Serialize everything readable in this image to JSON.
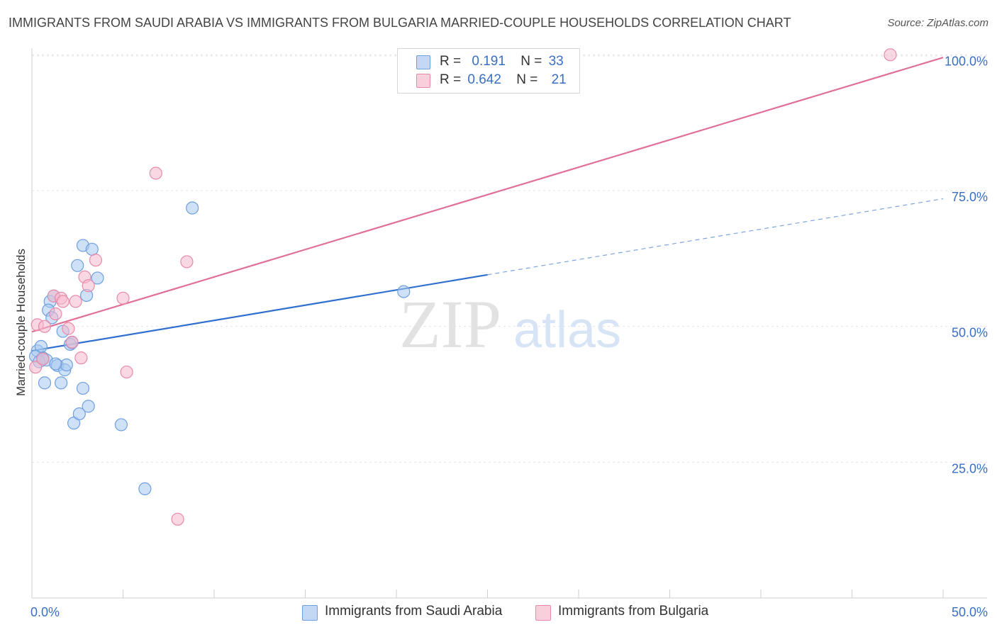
{
  "title": "IMMIGRANTS FROM SAUDI ARABIA VS IMMIGRANTS FROM BULGARIA MARRIED-COUPLE HOUSEHOLDS CORRELATION CHART",
  "source": "Source: ZipAtlas.com",
  "watermark": {
    "zip": "ZIP",
    "atlas": "atlas"
  },
  "legend": {
    "rows": [
      {
        "r_label": "R =",
        "r_value": "0.191",
        "n_label": "N =",
        "n_value": "33",
        "color": "#a8c8f0"
      },
      {
        "r_label": "R =",
        "r_value": "0.642",
        "n_label": "N =",
        "n_value": "21",
        "color": "#f5b8cc"
      }
    ]
  },
  "chart_data": {
    "type": "scatter",
    "title": "IMMIGRANTS FROM SAUDI ARABIA VS IMMIGRANTS FROM BULGARIA MARRIED-COUPLE HOUSEHOLDS CORRELATION CHART",
    "xlabel": "",
    "ylabel": "Married-couple Households",
    "xlim": [
      0,
      50
    ],
    "ylim": [
      0,
      102
    ],
    "x_tick_labels": [
      "0.0%",
      "50.0%"
    ],
    "y_tick_labels": [
      {
        "value": 25,
        "label": "25.0%"
      },
      {
        "value": 50,
        "label": "50.0%"
      },
      {
        "value": 75,
        "label": "75.0%"
      },
      {
        "value": 100,
        "label": "100.0%"
      }
    ],
    "series": [
      {
        "name": "Immigrants from Saudi Arabia",
        "color": "#6f9fe0",
        "fill": "#a8c8f0",
        "points": [
          [
            0.3,
            45.5
          ],
          [
            0.5,
            46.3
          ],
          [
            0.6,
            44.2
          ],
          [
            0.7,
            39.6
          ],
          [
            0.8,
            43.8
          ],
          [
            1.0,
            54.6
          ],
          [
            0.9,
            53.0
          ],
          [
            1.1,
            51.6
          ],
          [
            1.2,
            55.6
          ],
          [
            1.4,
            42.8
          ],
          [
            1.7,
            49.1
          ],
          [
            1.8,
            42.0
          ],
          [
            1.6,
            39.6
          ],
          [
            1.9,
            42.9
          ],
          [
            2.1,
            46.7
          ],
          [
            2.2,
            47.0
          ],
          [
            2.3,
            32.2
          ],
          [
            2.5,
            61.2
          ],
          [
            2.6,
            33.9
          ],
          [
            2.8,
            64.9
          ],
          [
            2.8,
            38.6
          ],
          [
            3.0,
            55.7
          ],
          [
            3.1,
            35.3
          ],
          [
            3.3,
            64.2
          ],
          [
            3.6,
            58.9
          ],
          [
            4.9,
            31.9
          ],
          [
            6.2,
            20.1
          ],
          [
            8.8,
            71.8
          ],
          [
            20.4,
            56.4
          ],
          [
            0.2,
            44.5
          ],
          [
            0.4,
            43.5
          ],
          [
            0.6,
            44.0
          ],
          [
            1.3,
            43.1
          ]
        ],
        "trend": {
          "x0": 0,
          "y0": 45.5,
          "x1": 25,
          "y1": 59.5,
          "dashed_to_x": 50,
          "dashed_to_y": 73.5
        }
      },
      {
        "name": "Immigrants from Bulgaria",
        "color": "#e88aa8",
        "fill": "#f5b8cc",
        "points": [
          [
            0.2,
            42.5
          ],
          [
            0.3,
            50.3
          ],
          [
            0.7,
            50.0
          ],
          [
            0.6,
            44.0
          ],
          [
            1.2,
            55.6
          ],
          [
            1.3,
            52.3
          ],
          [
            1.6,
            55.2
          ],
          [
            1.7,
            54.6
          ],
          [
            2.0,
            49.6
          ],
          [
            2.2,
            47.1
          ],
          [
            2.4,
            54.6
          ],
          [
            2.7,
            44.2
          ],
          [
            2.9,
            59.1
          ],
          [
            3.1,
            57.5
          ],
          [
            3.5,
            62.2
          ],
          [
            5.0,
            55.2
          ],
          [
            5.2,
            41.6
          ],
          [
            6.8,
            78.2
          ],
          [
            8.0,
            14.5
          ],
          [
            8.5,
            61.9
          ],
          [
            47.1,
            100.0
          ]
        ],
        "trend": {
          "x0": 0,
          "y0": 49.0,
          "x1": 50,
          "y1": 99.5
        }
      }
    ]
  },
  "bottom_legend": [
    {
      "label": "Immigrants from Saudi Arabia",
      "color": "#a8c8f0"
    },
    {
      "label": "Immigrants from Bulgaria",
      "color": "#f5b8cc"
    }
  ]
}
